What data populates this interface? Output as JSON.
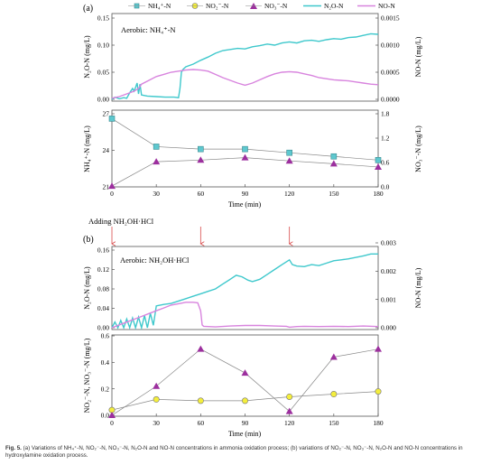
{
  "figure": {
    "caption_label": "Fig. 5.",
    "caption_text": "(a) Variations of NH₄⁺-N, NO₂⁻-N, NO₃⁻-N, N₂O-N and NO-N concentrations in ammonia oxidation process; (b) variations of NO₂⁻-N, NO₃⁻-N, N₂O-N and NO-N concentrations in hydroxylamine oxidation process.",
    "colors": {
      "nh4": "#5ec8cf",
      "no2": "#f4ee3c",
      "no3": "#9c2f9e",
      "n2o": "#3ec8cc",
      "no": "#d884de",
      "arrow": "#d84a4a",
      "frame": "#555555"
    }
  },
  "chart_data": [
    {
      "type": "line",
      "panel_label": "(a)",
      "annotation": "Aerobic: NH₄⁺-N",
      "legend": {
        "placement": "top",
        "entries": [
          "NH₄⁺-N",
          "NO₂⁻-N",
          "NO₃⁻-N",
          "N₂O-N",
          "NO-N"
        ]
      },
      "top": {
        "ylabel_left": "N₂O-N (mg/L)",
        "ylim_left": [
          0,
          0.15
        ],
        "yticks_left": [
          "0.00",
          "0.05",
          "0.10",
          "0.15"
        ],
        "ylabel_right": "NO-N (mg/L)",
        "ylim_right": [
          0,
          0.0015
        ],
        "yticks_right": [
          "0.0000",
          "0.0005",
          "0.0010",
          "0.0015"
        ],
        "n2o": [
          [
            0,
            0.0
          ],
          [
            2,
            0.004
          ],
          [
            5,
            0.001
          ],
          [
            8,
            0.003
          ],
          [
            10,
            0.002
          ],
          [
            12,
            0.012
          ],
          [
            14,
            0.02
          ],
          [
            15,
            0.015
          ],
          [
            16,
            0.022
          ],
          [
            17,
            0.03
          ],
          [
            18,
            0.01
          ],
          [
            19,
            0.028
          ],
          [
            20,
            0.008
          ],
          [
            24,
            0.006
          ],
          [
            30,
            0.005
          ],
          [
            36,
            0.004
          ],
          [
            42,
            0.004
          ],
          [
            45,
            0.003
          ],
          [
            46,
            0.02
          ],
          [
            47,
            0.05
          ],
          [
            48,
            0.055
          ],
          [
            50,
            0.06
          ],
          [
            55,
            0.065
          ],
          [
            60,
            0.072
          ],
          [
            65,
            0.078
          ],
          [
            70,
            0.085
          ],
          [
            75,
            0.09
          ],
          [
            80,
            0.092
          ],
          [
            85,
            0.094
          ],
          [
            90,
            0.093
          ],
          [
            95,
            0.097
          ],
          [
            100,
            0.099
          ],
          [
            105,
            0.102
          ],
          [
            110,
            0.1
          ],
          [
            115,
            0.104
          ],
          [
            120,
            0.106
          ],
          [
            125,
            0.104
          ],
          [
            130,
            0.108
          ],
          [
            135,
            0.109
          ],
          [
            140,
            0.107
          ],
          [
            145,
            0.11
          ],
          [
            150,
            0.112
          ],
          [
            155,
            0.111
          ],
          [
            160,
            0.114
          ],
          [
            165,
            0.115
          ],
          [
            170,
            0.118
          ],
          [
            175,
            0.121
          ],
          [
            180,
            0.12
          ]
        ],
        "no": [
          [
            0,
            2e-05
          ],
          [
            5,
            5e-05
          ],
          [
            10,
            0.0001
          ],
          [
            15,
            0.00015
          ],
          [
            18,
            0.0002
          ],
          [
            20,
            0.00028
          ],
          [
            25,
            0.00035
          ],
          [
            30,
            0.00042
          ],
          [
            35,
            0.00046
          ],
          [
            40,
            0.0005
          ],
          [
            45,
            0.00052
          ],
          [
            50,
            0.00054
          ],
          [
            55,
            0.00055
          ],
          [
            60,
            0.00054
          ],
          [
            65,
            0.00052
          ],
          [
            70,
            0.00046
          ],
          [
            75,
            0.0004
          ],
          [
            80,
            0.00035
          ],
          [
            85,
            0.0003
          ],
          [
            90,
            0.00026
          ],
          [
            95,
            0.0003
          ],
          [
            100,
            0.00036
          ],
          [
            105,
            0.00042
          ],
          [
            110,
            0.00047
          ],
          [
            115,
            0.0005
          ],
          [
            120,
            0.00051
          ],
          [
            125,
            0.0005
          ],
          [
            130,
            0.00047
          ],
          [
            135,
            0.00044
          ],
          [
            140,
            0.0004
          ],
          [
            145,
            0.00038
          ],
          [
            150,
            0.00036
          ],
          [
            155,
            0.00035
          ],
          [
            160,
            0.00034
          ],
          [
            165,
            0.00032
          ],
          [
            170,
            0.0003
          ],
          [
            175,
            0.00028
          ],
          [
            180,
            0.00027
          ]
        ]
      },
      "bottom": {
        "ylabel_left": "NH₄⁺-N (mg/L)",
        "ylim_left": [
          21,
          27
        ],
        "yticks_left": [
          "21",
          "24",
          "27"
        ],
        "ylabel_right": "NO₃⁻-N (mg/L)",
        "ylim_right": [
          0,
          1.8
        ],
        "yticks_right": [
          "0.0",
          "0.6",
          "1.2",
          "1.8"
        ],
        "xlabel": "Time (min)",
        "xlim": [
          0,
          180
        ],
        "xticks": [
          "0",
          "30",
          "60",
          "90",
          "120",
          "150",
          "180"
        ],
        "nh4": {
          "x": [
            0,
            30,
            60,
            90,
            120,
            150,
            180
          ],
          "y": [
            26.6,
            24.3,
            24.1,
            24.1,
            23.8,
            23.5,
            23.2
          ]
        },
        "no3": {
          "x": [
            0,
            30,
            60,
            90,
            120,
            150,
            180
          ],
          "y": [
            0.02,
            0.62,
            0.66,
            0.72,
            0.64,
            0.57,
            0.49
          ]
        }
      }
    },
    {
      "type": "line",
      "panel_label": "(b)",
      "annotation": "Aerobic: NH₂OH·HCl",
      "adding_label": "Adding NH₂OH·HCl",
      "arrow_times": [
        0,
        60,
        120
      ],
      "legend": {
        "placement": "none",
        "entries": []
      },
      "top": {
        "ylabel_left": "N₂O-N (mg/L)",
        "ylim_left": [
          0,
          0.16
        ],
        "yticks_left": [
          "0.00",
          "0.04",
          "0.08",
          "0.12",
          "0.16"
        ],
        "ylabel_right": "NO-N (mg/L)",
        "ylim_right": [
          0,
          0.003
        ],
        "yticks_right": [
          "0.000",
          "0.001",
          "0.002",
          "0.003"
        ],
        "n2o": [
          [
            0,
            0.0
          ],
          [
            2,
            0.012
          ],
          [
            4,
            0.0
          ],
          [
            6,
            0.015
          ],
          [
            8,
            0.0
          ],
          [
            10,
            0.018
          ],
          [
            12,
            0.0
          ],
          [
            14,
            0.02
          ],
          [
            16,
            0.0
          ],
          [
            18,
            0.022
          ],
          [
            20,
            0.0
          ],
          [
            22,
            0.025
          ],
          [
            24,
            0.0
          ],
          [
            26,
            0.03
          ],
          [
            28,
            0.005
          ],
          [
            30,
            0.045
          ],
          [
            35,
            0.048
          ],
          [
            40,
            0.05
          ],
          [
            45,
            0.055
          ],
          [
            50,
            0.06
          ],
          [
            55,
            0.065
          ],
          [
            60,
            0.07
          ],
          [
            65,
            0.075
          ],
          [
            70,
            0.08
          ],
          [
            75,
            0.09
          ],
          [
            80,
            0.1
          ],
          [
            84,
            0.108
          ],
          [
            88,
            0.105
          ],
          [
            92,
            0.098
          ],
          [
            95,
            0.095
          ],
          [
            100,
            0.1
          ],
          [
            105,
            0.11
          ],
          [
            110,
            0.12
          ],
          [
            115,
            0.13
          ],
          [
            120,
            0.14
          ],
          [
            122,
            0.13
          ],
          [
            125,
            0.127
          ],
          [
            130,
            0.126
          ],
          [
            135,
            0.13
          ],
          [
            140,
            0.128
          ],
          [
            145,
            0.133
          ],
          [
            150,
            0.138
          ],
          [
            155,
            0.14
          ],
          [
            160,
            0.142
          ],
          [
            165,
            0.145
          ],
          [
            170,
            0.148
          ],
          [
            175,
            0.152
          ],
          [
            180,
            0.152
          ]
        ],
        "no": [
          [
            0,
            0.0
          ],
          [
            5,
            0.0001
          ],
          [
            10,
            0.0002
          ],
          [
            15,
            0.0003
          ],
          [
            20,
            0.0004
          ],
          [
            25,
            0.0005
          ],
          [
            30,
            0.0006
          ],
          [
            35,
            0.0007
          ],
          [
            40,
            0.0008
          ],
          [
            45,
            0.00085
          ],
          [
            50,
            0.0009
          ],
          [
            55,
            0.0009
          ],
          [
            58,
            0.00088
          ],
          [
            60,
            0.0006
          ],
          [
            61,
            0.0001
          ],
          [
            62,
            5e-05
          ],
          [
            70,
            3e-05
          ],
          [
            80,
            6e-05
          ],
          [
            90,
            8e-05
          ],
          [
            100,
            8e-05
          ],
          [
            110,
            6e-05
          ],
          [
            118,
            5e-05
          ],
          [
            120,
            2e-05
          ],
          [
            125,
            4e-05
          ],
          [
            130,
            5e-05
          ],
          [
            140,
            4e-05
          ],
          [
            150,
            5e-05
          ],
          [
            160,
            4e-05
          ],
          [
            170,
            6e-05
          ],
          [
            180,
            4e-05
          ]
        ]
      },
      "bottom": {
        "ylabel_left": "NO₂⁻-N, NO₃⁻-N (mg/L)",
        "ylim_left": [
          0,
          0.6
        ],
        "yticks_left": [
          "0.0",
          "0.2",
          "0.4",
          "0.6"
        ],
        "xlabel": "Time (min)",
        "xlim": [
          0,
          180
        ],
        "xticks": [
          "0",
          "30",
          "60",
          "90",
          "120",
          "150",
          "180"
        ],
        "no2": {
          "x": [
            0,
            30,
            60,
            90,
            120,
            150,
            180
          ],
          "y": [
            0.04,
            0.12,
            0.11,
            0.11,
            0.14,
            0.16,
            0.18
          ]
        },
        "no3": {
          "x": [
            0,
            30,
            60,
            90,
            120,
            150,
            180
          ],
          "y": [
            0.0,
            0.22,
            0.5,
            0.32,
            0.03,
            0.44,
            0.5
          ]
        }
      }
    }
  ]
}
